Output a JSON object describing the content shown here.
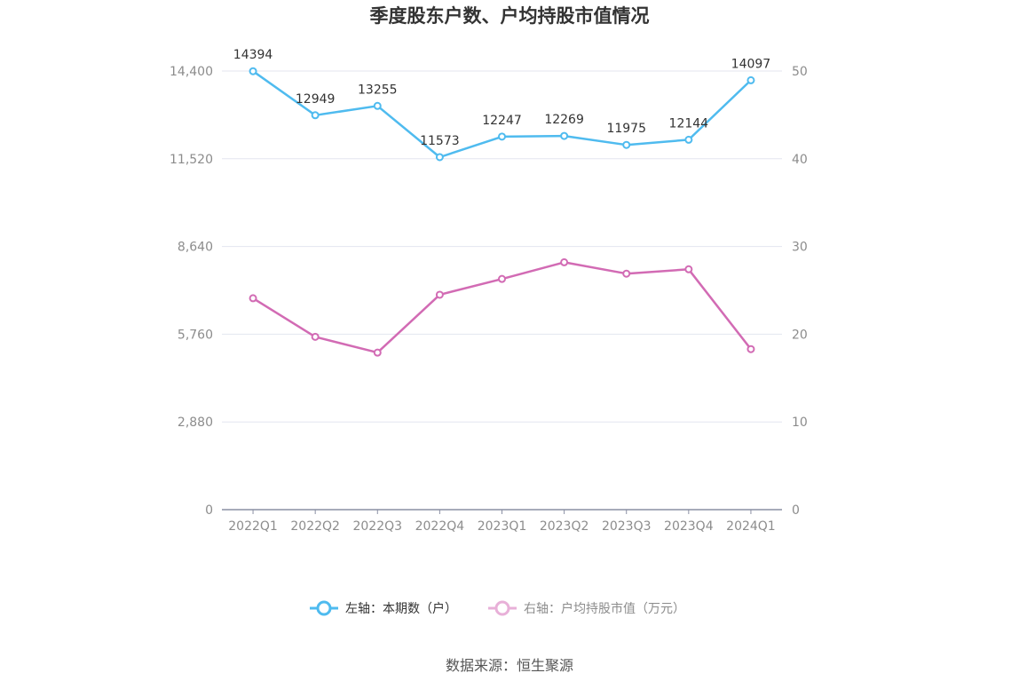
{
  "chart_data": {
    "type": "line",
    "title": "季度股东户数、户均持股市值情况",
    "categories": [
      "2022Q1",
      "2022Q2",
      "2022Q3",
      "2022Q4",
      "2023Q1",
      "2023Q2",
      "2023Q3",
      "2023Q4",
      "2024Q1"
    ],
    "left_axis": {
      "ticks": [
        "0",
        "2,880",
        "5,760",
        "8,640",
        "11,520",
        "14,400"
      ],
      "ylim": [
        0,
        14400
      ]
    },
    "right_axis": {
      "ticks": [
        "0",
        "10",
        "20",
        "30",
        "40",
        "50"
      ],
      "ylim": [
        0,
        50
      ]
    },
    "series": [
      {
        "name": "左轴：本期数（户）",
        "axis": "left",
        "color": "#4fbbef",
        "values": [
          14394,
          12949,
          13255,
          11573,
          12247,
          12269,
          11975,
          12144,
          14097
        ],
        "data_labels": [
          "14394",
          "12949",
          "13255",
          "11573",
          "12247",
          "12269",
          "11975",
          "12144",
          "14097"
        ]
      },
      {
        "name": "右轴：户均持股市值（万元）",
        "axis": "right",
        "color": "#d26bb4",
        "values": [
          24.1,
          19.7,
          17.9,
          24.5,
          26.3,
          28.2,
          26.9,
          27.4,
          18.3
        ]
      }
    ],
    "legend_position": "bottom",
    "grid": true
  },
  "legend": {
    "left_label": "左轴：本期数（户）",
    "right_label": "右轴：户均持股市值（万元）"
  },
  "source": "数据来源：恒生聚源"
}
